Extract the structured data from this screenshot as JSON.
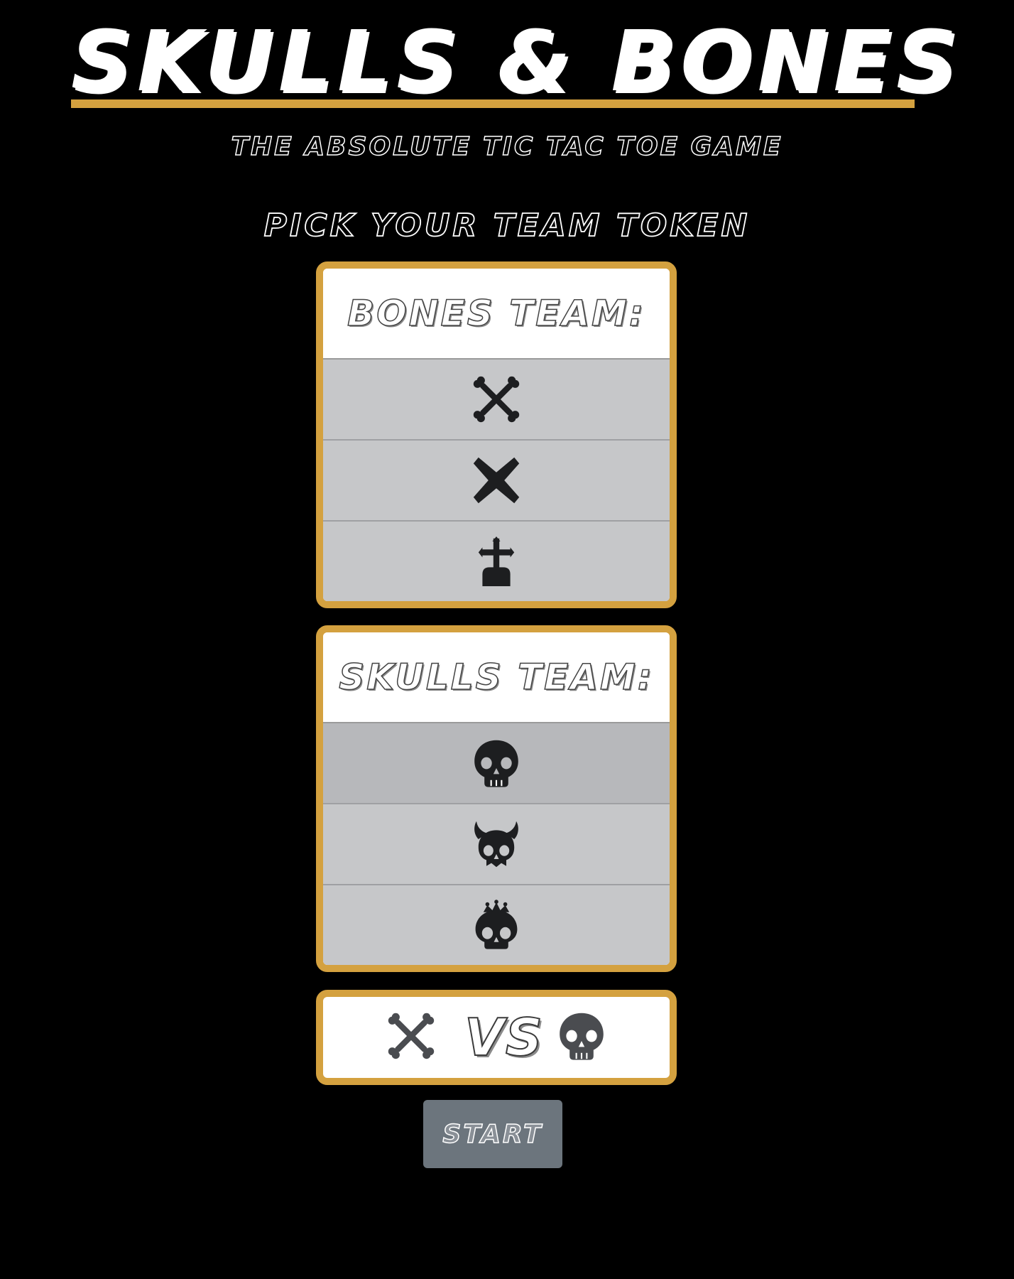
{
  "header": {
    "title": "Skulls & Bones",
    "subtitle": "The Absolute Tic Tac Toe Game"
  },
  "picker": {
    "heading": "Pick your team token"
  },
  "bones_team": {
    "label": "Bones Team:",
    "tokens": [
      {
        "icon": "crossbones-icon",
        "selected": false
      },
      {
        "icon": "cross-x-icon",
        "selected": false
      },
      {
        "icon": "gravestone-cross-icon",
        "selected": false
      }
    ]
  },
  "skulls_team": {
    "label": "Skulls Team:",
    "tokens": [
      {
        "icon": "skull-icon",
        "selected": true
      },
      {
        "icon": "horned-skull-icon",
        "selected": false
      },
      {
        "icon": "crowned-skull-icon",
        "selected": false
      }
    ]
  },
  "matchup": {
    "vs_label": "VS",
    "left_icon": "crossbones-icon",
    "right_icon": "skull-icon"
  },
  "actions": {
    "start_label": "Start"
  },
  "colors": {
    "background": "#000000",
    "accent_gold": "#d4a13f",
    "token_row": "#c6c7c9",
    "token_row_selected": "#b7b8bb",
    "icon_dark": "#1d1e20",
    "icon_gray": "#4a4c50",
    "button_gray": "#6c757d"
  }
}
